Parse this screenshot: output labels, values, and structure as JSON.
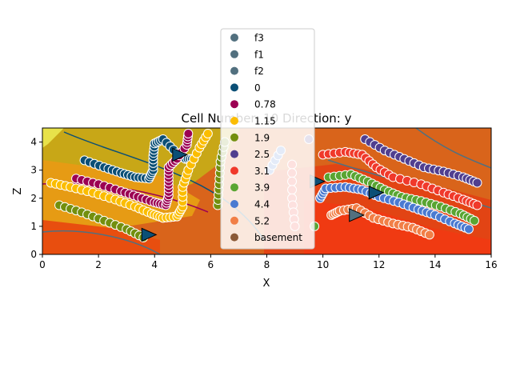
{
  "chart_data": {
    "type": "scatter",
    "title": "Cell Number: 10 Direction: y",
    "xlabel": "X",
    "ylabel": "Z",
    "xlim": [
      0,
      16
    ],
    "ylim": [
      0,
      4.5
    ],
    "x_ticks": [
      "0",
      "2",
      "4",
      "6",
      "8",
      "10",
      "12",
      "14",
      "16"
    ],
    "y_ticks": [
      "0",
      "1",
      "2",
      "3",
      "4"
    ],
    "legend_position": "top-center",
    "legend": [
      {
        "name": "f3",
        "color": "#52707f"
      },
      {
        "name": "f1",
        "color": "#52707f"
      },
      {
        "name": "f2",
        "color": "#52707f"
      },
      {
        "name": "0",
        "color": "#0b4f76"
      },
      {
        "name": "0.78",
        "color": "#9c0053"
      },
      {
        "name": "1.15",
        "color": "#fbbd00"
      },
      {
        "name": "1.9",
        "color": "#728f0e"
      },
      {
        "name": "2.5",
        "color": "#503f8f"
      },
      {
        "name": "3.1",
        "color": "#f0392b"
      },
      {
        "name": "3.9",
        "color": "#59a532"
      },
      {
        "name": "4.4",
        "color": "#4a7ad1"
      },
      {
        "name": "5.2",
        "color": "#f17f47"
      },
      {
        "name": "basement",
        "color": "#8b5a38"
      }
    ],
    "series": [
      {
        "name": "0",
        "color": "#0b4f76",
        "points": [
          [
            1.5,
            3.35
          ],
          [
            2.2,
            3.1
          ],
          [
            2.8,
            2.9
          ],
          [
            3.3,
            2.75
          ],
          [
            3.8,
            2.7
          ],
          [
            3.95,
            3.0
          ],
          [
            3.95,
            3.5
          ],
          [
            4.0,
            3.95
          ],
          [
            4.3,
            4.1
          ],
          [
            4.8,
            3.6
          ],
          [
            5.1,
            3.4
          ],
          [
            5.4,
            3.4
          ]
        ]
      },
      {
        "name": "0.78",
        "color": "#9c0053",
        "points": [
          [
            1.2,
            2.7
          ],
          [
            2.0,
            2.5
          ],
          [
            2.8,
            2.25
          ],
          [
            3.4,
            2.05
          ],
          [
            4.0,
            1.85
          ],
          [
            4.4,
            1.75
          ],
          [
            4.5,
            2.1
          ],
          [
            4.5,
            2.6
          ],
          [
            4.5,
            3.1
          ],
          [
            4.8,
            3.4
          ],
          [
            5.15,
            3.9
          ],
          [
            5.2,
            4.3
          ]
        ]
      },
      {
        "name": "1.15",
        "color": "#fbbd00",
        "points": [
          [
            0.3,
            2.55
          ],
          [
            1.0,
            2.4
          ],
          [
            1.8,
            2.2
          ],
          [
            2.6,
            1.95
          ],
          [
            3.3,
            1.7
          ],
          [
            3.9,
            1.45
          ],
          [
            4.3,
            1.3
          ],
          [
            4.8,
            1.35
          ],
          [
            5.0,
            1.7
          ],
          [
            5.0,
            2.4
          ],
          [
            5.2,
            3.0
          ],
          [
            5.6,
            3.8
          ],
          [
            5.9,
            4.3
          ]
        ]
      },
      {
        "name": "1.9",
        "color": "#728f0e",
        "points": [
          [
            0.6,
            1.75
          ],
          [
            1.4,
            1.5
          ],
          [
            2.2,
            1.2
          ],
          [
            3.0,
            0.9
          ],
          [
            3.6,
            0.6
          ],
          [
            6.25,
            1.75
          ],
          [
            6.3,
            2.5
          ],
          [
            6.35,
            3.3
          ],
          [
            6.5,
            4.0
          ]
        ]
      },
      {
        "name": "2.5",
        "color": "#503f8f",
        "points": [
          [
            11.5,
            4.1
          ],
          [
            12.2,
            3.7
          ],
          [
            12.9,
            3.4
          ],
          [
            13.6,
            3.1
          ],
          [
            14.3,
            2.95
          ],
          [
            15.0,
            2.75
          ],
          [
            15.5,
            2.55
          ],
          [
            9.5,
            4.1
          ]
        ]
      },
      {
        "name": "3.1",
        "color": "#f0392b",
        "points": [
          [
            10.0,
            3.55
          ],
          [
            10.8,
            3.65
          ],
          [
            11.4,
            3.55
          ],
          [
            11.9,
            3.1
          ],
          [
            12.5,
            2.75
          ],
          [
            13.5,
            2.5
          ],
          [
            14.3,
            2.2
          ],
          [
            15.0,
            1.95
          ],
          [
            15.5,
            1.75
          ],
          [
            8.9,
            3.2
          ],
          [
            8.9,
            2.0
          ],
          [
            9.0,
            1.0
          ]
        ]
      },
      {
        "name": "3.9",
        "color": "#59a532",
        "points": [
          [
            10.2,
            2.75
          ],
          [
            11.0,
            2.85
          ],
          [
            11.6,
            2.6
          ],
          [
            12.2,
            2.3
          ],
          [
            12.8,
            2.05
          ],
          [
            13.5,
            1.9
          ],
          [
            14.2,
            1.7
          ],
          [
            14.9,
            1.45
          ],
          [
            15.4,
            1.2
          ],
          [
            9.7,
            1.0
          ]
        ]
      },
      {
        "name": "4.4",
        "color": "#4a7ad1",
        "points": [
          [
            9.9,
            2.0
          ],
          [
            10.1,
            2.35
          ],
          [
            10.8,
            2.4
          ],
          [
            11.4,
            2.3
          ],
          [
            12.0,
            2.05
          ],
          [
            12.7,
            1.85
          ],
          [
            13.4,
            1.6
          ],
          [
            14.0,
            1.4
          ],
          [
            14.7,
            1.1
          ],
          [
            15.2,
            0.9
          ],
          [
            8.1,
            3.0
          ],
          [
            8.5,
            3.7
          ]
        ]
      },
      {
        "name": "5.2",
        "color": "#f17f47",
        "points": [
          [
            10.3,
            1.4
          ],
          [
            10.6,
            1.55
          ],
          [
            11.2,
            1.65
          ],
          [
            11.8,
            1.3
          ],
          [
            12.5,
            1.1
          ],
          [
            13.2,
            0.95
          ],
          [
            13.8,
            0.7
          ]
        ]
      }
    ],
    "orientations": [
      {
        "x": 3.8,
        "z": 0.7,
        "color": "#0b4f76"
      },
      {
        "x": 4.9,
        "z": 3.55,
        "color": "#0b4f76"
      },
      {
        "x": 9.8,
        "z": 2.6,
        "color": "#0b4f76"
      },
      {
        "x": 11.2,
        "z": 1.4,
        "color": "#52707f"
      },
      {
        "x": 11.9,
        "z": 2.2,
        "color": "#0b4f76"
      }
    ]
  }
}
